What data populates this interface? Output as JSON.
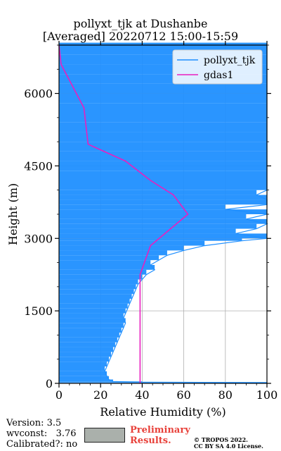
{
  "title_line1": "pollyxt_tjk at Dushanbe",
  "title_line2": "[Averaged] 20220712 15:00-15:59",
  "footer": {
    "version": "Version: 3.5",
    "wvconst": "wvconst:   3.76",
    "calibrated": "Calibrated?: no",
    "prelim1": "Preliminary",
    "prelim2": "Results.",
    "copy1": "© TROPOS 2022.",
    "copy2": "CC BY SA 4.0 License."
  },
  "colors": {
    "pollyxt": "#1f8fff",
    "gdas": "#e81fbf"
  },
  "chart_data": {
    "type": "line",
    "xlabel": "Relative Humidity (%)",
    "ylabel": "Height (m)",
    "xlim": [
      0,
      100
    ],
    "ylim": [
      0,
      7000
    ],
    "xticks": [
      "0",
      "20",
      "40",
      "60",
      "80",
      "100"
    ],
    "yticks": [
      "0",
      "1500",
      "3000",
      "4500",
      "6000"
    ],
    "legend_position": "top-right",
    "grid": true,
    "series": [
      {
        "name": "pollyxt_tjk",
        "color": "#1f8fff",
        "points": [
          [
            100,
            15
          ],
          [
            40,
            25
          ],
          [
            26,
            40
          ],
          [
            24,
            80
          ],
          [
            23,
            150
          ],
          [
            22,
            250
          ],
          [
            23,
            350
          ],
          [
            24,
            450
          ],
          [
            25,
            550
          ],
          [
            26,
            650
          ],
          [
            27,
            750
          ],
          [
            28,
            850
          ],
          [
            29,
            950
          ],
          [
            30,
            1050
          ],
          [
            31,
            1150
          ],
          [
            32,
            1250
          ],
          [
            31,
            1350
          ],
          [
            32,
            1450
          ],
          [
            33,
            1550
          ],
          [
            34,
            1650
          ],
          [
            35,
            1750
          ],
          [
            36,
            1850
          ],
          [
            37,
            1950
          ],
          [
            38,
            2050
          ],
          [
            40,
            2150
          ],
          [
            42,
            2250
          ],
          [
            46,
            2350
          ],
          [
            44,
            2450
          ],
          [
            48,
            2550
          ],
          [
            52,
            2650
          ],
          [
            60,
            2750
          ],
          [
            70,
            2850
          ],
          [
            88,
            2950
          ],
          [
            100,
            3000
          ],
          [
            85,
            3100
          ],
          [
            95,
            3200
          ],
          [
            100,
            3300
          ],
          [
            90,
            3400
          ],
          [
            100,
            3500
          ],
          [
            80,
            3600
          ],
          [
            100,
            3700
          ],
          [
            100,
            3800
          ],
          [
            95,
            3900
          ],
          [
            100,
            4000
          ],
          [
            100,
            4200
          ],
          [
            100,
            4400
          ],
          [
            100,
            4600
          ],
          [
            100,
            4800
          ],
          [
            100,
            5000
          ],
          [
            100,
            5200
          ],
          [
            100,
            5400
          ],
          [
            100,
            5600
          ],
          [
            100,
            5800
          ],
          [
            100,
            6000
          ],
          [
            100,
            6200
          ],
          [
            100,
            6400
          ],
          [
            100,
            6600
          ],
          [
            100,
            6800
          ],
          [
            100,
            7000
          ]
        ]
      },
      {
        "name": "gdas1",
        "color": "#e81fbf",
        "points": [
          [
            39,
            0
          ],
          [
            39,
            500
          ],
          [
            39,
            1000
          ],
          [
            39,
            1500
          ],
          [
            39,
            2000
          ],
          [
            39,
            2250
          ],
          [
            44,
            2850
          ],
          [
            62,
            3500
          ],
          [
            55,
            3900
          ],
          [
            44,
            4200
          ],
          [
            32,
            4600
          ],
          [
            14,
            4950
          ],
          [
            12,
            5700
          ],
          [
            1,
            6600
          ],
          [
            0,
            7000
          ]
        ]
      }
    ]
  }
}
